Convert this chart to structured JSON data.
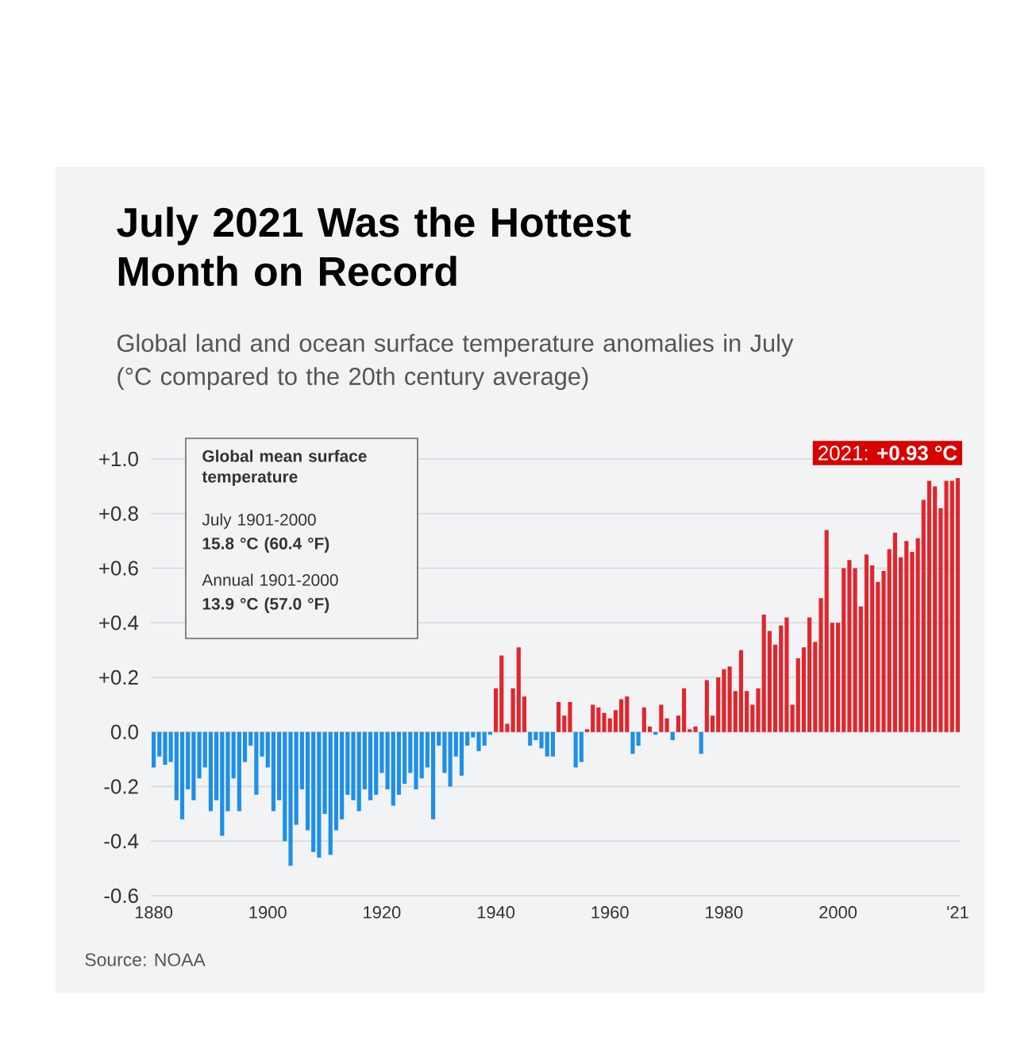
{
  "chart_data": {
    "type": "bar",
    "title": "July 2021 Was the Hottest Month on Record",
    "subtitle": "Global land and ocean surface temperature anomalies in July (°C compared to the 20th century average)",
    "x": [
      1880,
      1881,
      1882,
      1883,
      1884,
      1885,
      1886,
      1887,
      1888,
      1889,
      1890,
      1891,
      1892,
      1893,
      1894,
      1895,
      1896,
      1897,
      1898,
      1899,
      1900,
      1901,
      1902,
      1903,
      1904,
      1905,
      1906,
      1907,
      1908,
      1909,
      1910,
      1911,
      1912,
      1913,
      1914,
      1915,
      1916,
      1917,
      1918,
      1919,
      1920,
      1921,
      1922,
      1923,
      1924,
      1925,
      1926,
      1927,
      1928,
      1929,
      1930,
      1931,
      1932,
      1933,
      1934,
      1935,
      1936,
      1937,
      1938,
      1939,
      1940,
      1941,
      1942,
      1943,
      1944,
      1945,
      1946,
      1947,
      1948,
      1949,
      1950,
      1951,
      1952,
      1953,
      1954,
      1955,
      1956,
      1957,
      1958,
      1959,
      1960,
      1961,
      1962,
      1963,
      1964,
      1965,
      1966,
      1967,
      1968,
      1969,
      1970,
      1971,
      1972,
      1973,
      1974,
      1975,
      1976,
      1977,
      1978,
      1979,
      1980,
      1981,
      1982,
      1983,
      1984,
      1985,
      1986,
      1987,
      1988,
      1989,
      1990,
      1991,
      1992,
      1993,
      1994,
      1995,
      1996,
      1997,
      1998,
      1999,
      2000,
      2001,
      2002,
      2003,
      2004,
      2005,
      2006,
      2007,
      2008,
      2009,
      2010,
      2011,
      2012,
      2013,
      2014,
      2015,
      2016,
      2017,
      2018,
      2019,
      2020,
      2021
    ],
    "values": [
      -0.13,
      -0.09,
      -0.12,
      -0.11,
      -0.25,
      -0.32,
      -0.21,
      -0.25,
      -0.17,
      -0.13,
      -0.29,
      -0.25,
      -0.38,
      -0.29,
      -0.17,
      -0.29,
      -0.11,
      -0.05,
      -0.23,
      -0.09,
      -0.13,
      -0.29,
      -0.25,
      -0.4,
      -0.49,
      -0.34,
      -0.21,
      -0.36,
      -0.44,
      -0.46,
      -0.3,
      -0.45,
      -0.36,
      -0.32,
      -0.23,
      -0.25,
      -0.29,
      -0.21,
      -0.25,
      -0.23,
      -0.15,
      -0.21,
      -0.27,
      -0.23,
      -0.19,
      -0.15,
      -0.21,
      -0.17,
      -0.13,
      -0.32,
      -0.05,
      -0.15,
      -0.2,
      -0.09,
      -0.16,
      -0.05,
      -0.02,
      -0.07,
      -0.05,
      -0.01,
      0.16,
      0.28,
      0.03,
      0.16,
      0.31,
      0.13,
      -0.05,
      -0.03,
      -0.06,
      -0.09,
      -0.09,
      0.11,
      0.06,
      0.11,
      -0.13,
      -0.11,
      0.01,
      0.1,
      0.09,
      0.07,
      0.05,
      0.08,
      0.12,
      0.13,
      -0.08,
      -0.05,
      0.09,
      0.02,
      -0.01,
      0.1,
      0.05,
      -0.03,
      0.06,
      0.16,
      0.01,
      0.02,
      -0.08,
      0.19,
      0.06,
      0.2,
      0.23,
      0.24,
      0.15,
      0.3,
      0.15,
      0.1,
      0.16,
      0.43,
      0.37,
      0.32,
      0.39,
      0.42,
      0.1,
      0.27,
      0.31,
      0.42,
      0.33,
      0.49,
      0.74,
      0.4,
      0.4,
      0.6,
      0.63,
      0.6,
      0.46,
      0.65,
      0.61,
      0.55,
      0.59,
      0.67,
      0.73,
      0.64,
      0.7,
      0.66,
      0.71,
      0.85,
      0.92,
      0.9,
      0.82,
      0.92,
      0.92,
      0.93
    ],
    "colors": [
      "#1e8fe6",
      "#1e8fe6",
      "#1e8fe6",
      "#1e8fe6",
      "#1e8fe6",
      "#1e8fe6",
      "#1e8fe6",
      "#1e8fe6",
      "#1e8fe6",
      "#1e8fe6",
      "#1e8fe6",
      "#1e8fe6",
      "#1e8fe6",
      "#1e8fe6",
      "#1e8fe6",
      "#1e8fe6",
      "#1e8fe6",
      "#1e8fe6",
      "#1e8fe6",
      "#1e8fe6",
      "#1e8fe6",
      "#1e8fe6",
      "#1e8fe6",
      "#1e8fe6",
      "#1e8fe6",
      "#1e8fe6",
      "#1e8fe6",
      "#1e8fe6",
      "#1e8fe6",
      "#1e8fe6",
      "#1e8fe6",
      "#1e8fe6",
      "#1e8fe6",
      "#1e8fe6",
      "#1e8fe6",
      "#1e8fe6",
      "#1e8fe6",
      "#1e8fe6",
      "#1e8fe6",
      "#1e8fe6",
      "#1e8fe6",
      "#1e8fe6",
      "#1e8fe6",
      "#1e8fe6",
      "#1e8fe6",
      "#1e8fe6",
      "#1e8fe6",
      "#1e8fe6",
      "#1e8fe6",
      "#1e8fe6",
      "#1e8fe6",
      "#1e8fe6",
      "#1e8fe6",
      "#1e8fe6",
      "#1e8fe6",
      "#1e8fe6",
      "#1e8fe6",
      "#1e8fe6",
      "#1e8fe6",
      "#1e8fe6",
      "#e0262d",
      "#e0262d",
      "#e0262d",
      "#e0262d",
      "#e0262d",
      "#e0262d",
      "#1e8fe6",
      "#1e8fe6",
      "#1e8fe6",
      "#1e8fe6",
      "#1e8fe6",
      "#e0262d",
      "#e0262d",
      "#e0262d",
      "#1e8fe6",
      "#1e8fe6",
      "#e0262d",
      "#e0262d",
      "#e0262d",
      "#e0262d",
      "#e0262d",
      "#e0262d",
      "#e0262d",
      "#e0262d",
      "#1e8fe6",
      "#1e8fe6",
      "#e0262d",
      "#e0262d",
      "#1e8fe6",
      "#e0262d",
      "#e0262d",
      "#1e8fe6",
      "#e0262d",
      "#e0262d",
      "#e0262d",
      "#e0262d",
      "#1e8fe6",
      "#e0262d",
      "#e0262d",
      "#e0262d",
      "#e0262d",
      "#e0262d",
      "#e0262d",
      "#e0262d",
      "#e0262d",
      "#e0262d",
      "#e0262d",
      "#e0262d",
      "#e0262d",
      "#e0262d",
      "#e0262d",
      "#e0262d",
      "#e0262d",
      "#e0262d",
      "#e0262d",
      "#e0262d",
      "#e0262d",
      "#e0262d",
      "#e0262d",
      "#e0262d",
      "#e0262d",
      "#e0262d",
      "#e0262d",
      "#e0262d",
      "#e0262d",
      "#e0262d",
      "#e0262d",
      "#e0262d",
      "#e0262d",
      "#e0262d",
      "#e0262d",
      "#e0262d",
      "#e0262d",
      "#e0262d",
      "#e0262d",
      "#e0262d",
      "#e0262d",
      "#e0262d",
      "#e0262d",
      "#e0262d",
      "#e0262d",
      "#e0262d"
    ],
    "xlim": [
      1879.5,
      2021.5
    ],
    "ylim": [
      -0.6,
      1.0
    ],
    "xticks": [
      1880,
      1900,
      1920,
      1940,
      1960,
      1980,
      2000,
      {
        "value": 2021,
        "label": "'21"
      }
    ],
    "yticks": [
      {
        "value": -0.6,
        "label": "-0.6"
      },
      {
        "value": -0.4,
        "label": "-0.4"
      },
      {
        "value": -0.2,
        "label": "-0.2"
      },
      {
        "value": 0,
        "label": "0.0"
      },
      {
        "value": 0.2,
        "label": "+0.2"
      },
      {
        "value": 0.4,
        "label": "+0.4"
      },
      {
        "value": 0.6,
        "label": "+0.6"
      },
      {
        "value": 0.8,
        "label": "+0.8"
      },
      {
        "value": 1.0,
        "label": "+1.0"
      }
    ],
    "grid": "y",
    "annotations": [
      "Global mean surface temperature",
      "July 1901-2000",
      "15.8 °C (60.4 °F)",
      "Annual 1901-2000",
      "13.9 °C (57.0 °F)",
      {
        "text": "2021: **+0.93 °C**",
        "x": 2021,
        "y": 0.93
      },
      "Source: NOAA"
    ]
  }
}
